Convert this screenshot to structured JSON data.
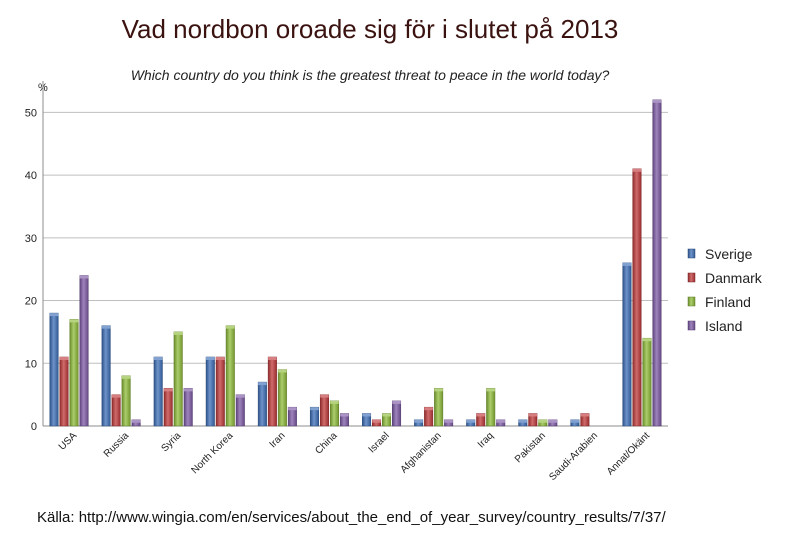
{
  "chart_data": {
    "type": "bar",
    "title": "Vad nordbon oroade sig för i slutet på 2013",
    "subtitle": "Which country do you think is the greatest threat to peace in the world today?",
    "ylabel": "%",
    "ylim": [
      0,
      55
    ],
    "yticks": [
      0,
      10,
      20,
      30,
      40,
      50
    ],
    "grid": true,
    "legend_position": "right",
    "categories": [
      "USA",
      "Russia",
      "Syria",
      "North Korea",
      "Iran",
      "China",
      "Israel",
      "Afghanistan",
      "Iraq",
      "Pakistan",
      "Saudi-Arabien",
      "Annat/Okänt"
    ],
    "series": [
      {
        "name": "Sverige",
        "color": "#3d6fb8",
        "values": [
          18,
          16,
          11,
          11,
          7,
          3,
          2,
          1,
          1,
          1,
          1,
          26
        ]
      },
      {
        "name": "Danmark",
        "color": "#c0393b",
        "values": [
          11,
          5,
          6,
          11,
          11,
          5,
          1,
          3,
          2,
          2,
          2,
          41
        ]
      },
      {
        "name": "Finland",
        "color": "#8fbc3a",
        "values": [
          17,
          8,
          15,
          16,
          9,
          4,
          2,
          6,
          6,
          1,
          0,
          14
        ]
      },
      {
        "name": "Island",
        "color": "#7e5ba6",
        "values": [
          24,
          1,
          6,
          5,
          3,
          2,
          4,
          1,
          1,
          1,
          0,
          52
        ]
      }
    ],
    "source": "Källa: http://www.wingia.com/en/services/about_the_end_of_year_survey/country_results/7/37/"
  }
}
